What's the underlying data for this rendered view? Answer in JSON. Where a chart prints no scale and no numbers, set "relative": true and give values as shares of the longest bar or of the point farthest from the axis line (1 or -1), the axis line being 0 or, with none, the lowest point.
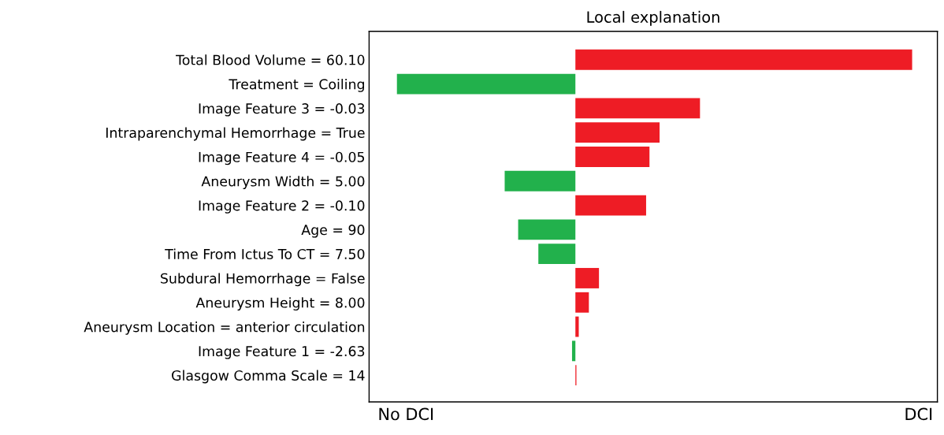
{
  "chart_data": {
    "type": "bar",
    "orientation": "horizontal",
    "relative": true,
    "title": "Local explanation",
    "categories": [
      "Total Blood Volume = 60.10",
      "Treatment = Coiling",
      "Image Feature 3 = -0.03",
      "Intraparenchymal Hemorrhage = True",
      "Image Feature 4 = -0.05",
      "Aneurysm Width = 5.00",
      "Image Feature 2 = -0.10",
      "Age = 90",
      "Time From Ictus To CT = 7.50",
      "Subdural Hemorrhage = False",
      "Aneurysm Height = 8.00",
      "Aneurysm Location = anterior circulation",
      "Image Feature 1 = -2.63",
      "Glasgow Comma Scale = 14"
    ],
    "values": [
      1.0,
      -0.53,
      0.37,
      0.25,
      0.22,
      -0.21,
      0.21,
      -0.17,
      -0.11,
      0.07,
      0.04,
      0.01,
      -0.01,
      0.003
    ],
    "colors": [
      "#ee1c25",
      "#22b14c",
      "#ee1c25",
      "#ee1c25",
      "#ee1c25",
      "#22b14c",
      "#ee1c25",
      "#22b14c",
      "#22b14c",
      "#ee1c25",
      "#ee1c25",
      "#ee1c25",
      "#22b14c",
      "#ee1c25"
    ],
    "annotations": [
      "No DCI",
      "DCI"
    ]
  }
}
